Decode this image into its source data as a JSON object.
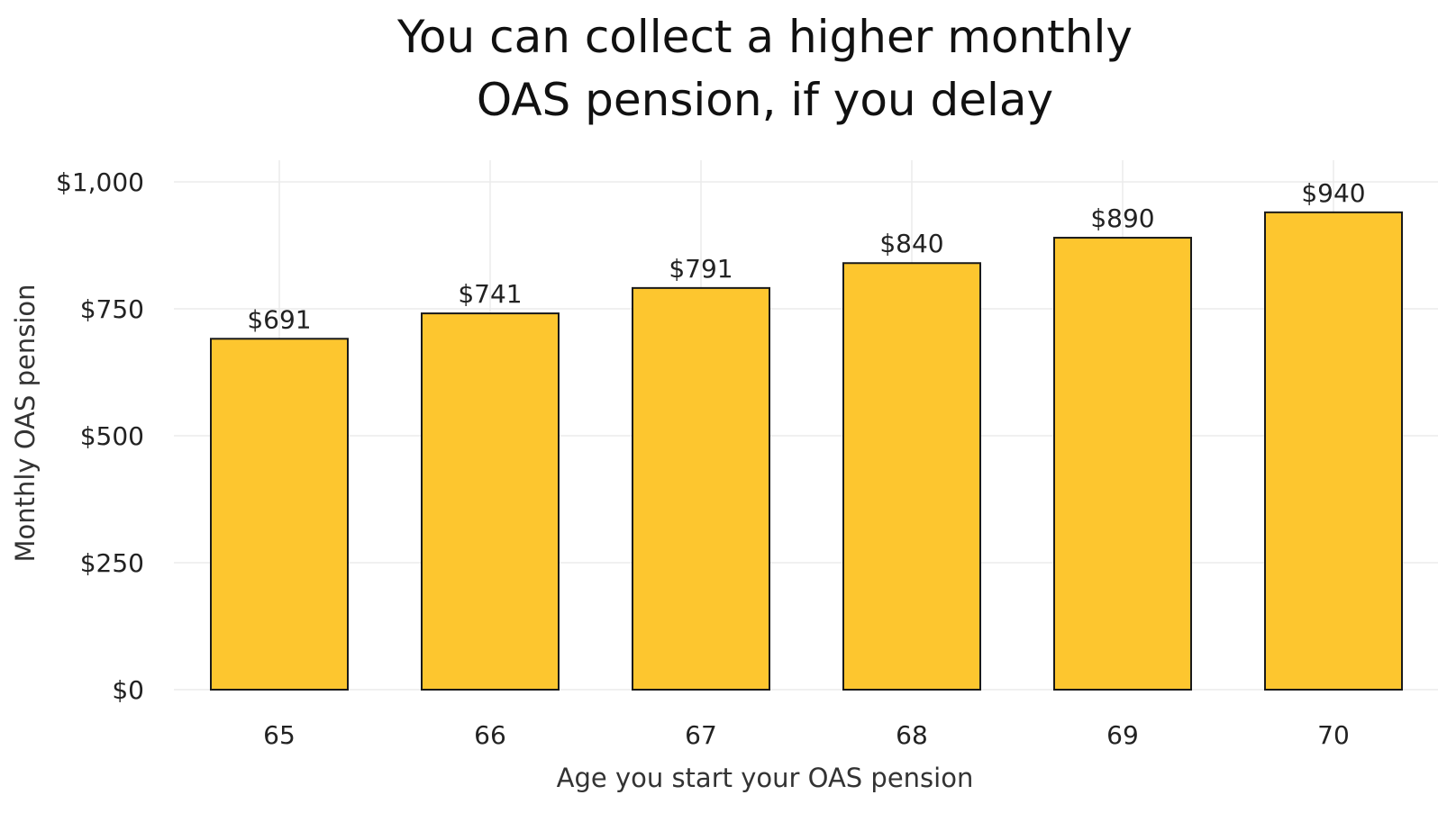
{
  "chart_data": {
    "type": "bar",
    "title_lines": [
      "You can collect a higher monthly",
      "OAS pension, if you delay"
    ],
    "xlabel": "Age you start your OAS pension",
    "ylabel": "Monthly OAS  pension",
    "categories": [
      "65",
      "66",
      "67",
      "68",
      "69",
      "70"
    ],
    "values": [
      691,
      741,
      791,
      840,
      890,
      940
    ],
    "value_labels": [
      "$691",
      "$741",
      "$791",
      "$840",
      "$890",
      "$940"
    ],
    "ylim": [
      0,
      1000
    ],
    "yticks": [
      0,
      250,
      500,
      750,
      1000
    ],
    "ytick_labels": [
      "$0",
      "$250",
      "$500",
      "$750",
      "$1,000"
    ],
    "grid": true,
    "bar_color": "#fdc62f",
    "bar_edge_color": "#1a1a1a"
  }
}
